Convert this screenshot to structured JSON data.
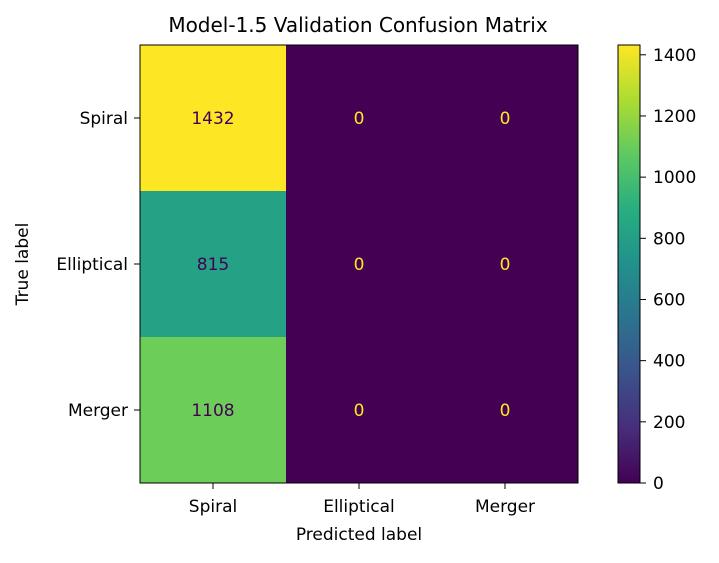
{
  "chart_data": {
    "type": "heatmap",
    "title": "Model-1.5 Validation Confusion Matrix",
    "xlabel": "Predicted label",
    "ylabel": "True label",
    "x_categories": [
      "Spiral",
      "Elliptical",
      "Merger"
    ],
    "y_categories": [
      "Spiral",
      "Elliptical",
      "Merger"
    ],
    "values": [
      [
        1432,
        0,
        0
      ],
      [
        815,
        0,
        0
      ],
      [
        1108,
        0,
        0
      ]
    ],
    "colormap": "viridis",
    "colorbar": {
      "range": [
        0,
        1432
      ],
      "ticks": [
        0,
        200,
        400,
        600,
        800,
        1000,
        1200,
        1400
      ]
    }
  }
}
